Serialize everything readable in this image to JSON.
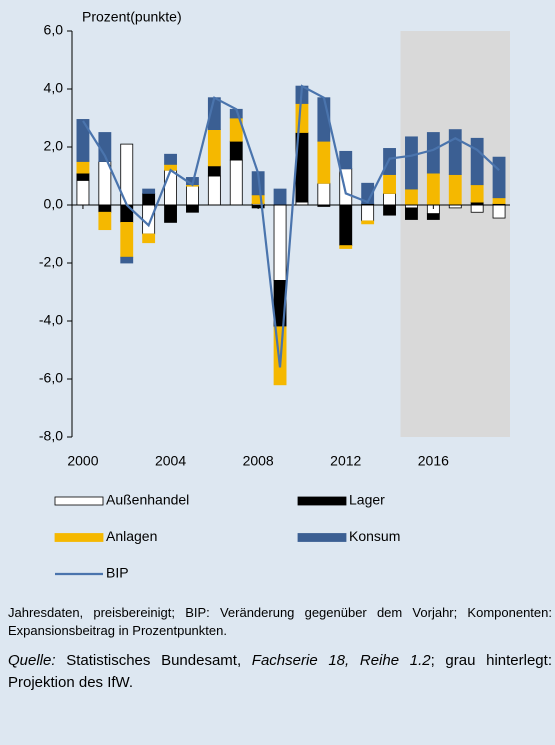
{
  "chart_data": {
    "type": "bar",
    "stacked": true,
    "y_axis_label": "Prozent(punkte)",
    "x": [
      2000,
      2001,
      2002,
      2003,
      2004,
      2005,
      2006,
      2007,
      2008,
      2009,
      2010,
      2011,
      2012,
      2013,
      2014,
      2015,
      2016,
      2017,
      2018,
      2019
    ],
    "xlim": [
      1999.5,
      2019.5
    ],
    "xticks": [
      2000,
      2004,
      2008,
      2012,
      2016
    ],
    "ylim": [
      -8,
      6
    ],
    "yticks": [
      {
        "value": -8,
        "label": "-8,0"
      },
      {
        "value": -6,
        "label": "-6,0"
      },
      {
        "value": -4,
        "label": "-4,0"
      },
      {
        "value": -2,
        "label": "-2,0"
      },
      {
        "value": 0,
        "label": "0,0"
      },
      {
        "value": 2,
        "label": "2,0"
      },
      {
        "value": 4,
        "label": "4,0"
      },
      {
        "value": 6,
        "label": "6,0"
      }
    ],
    "shaded_region": [
      2014.5,
      2019.5
    ],
    "shaded_color": "#d9d9d9",
    "series": [
      {
        "name": "Außenhandel",
        "type": "bar",
        "color": "#ffffff",
        "values": [
          0.85,
          1.5,
          2.1,
          -1.0,
          1.2,
          0.65,
          1.0,
          1.55,
          0.05,
          -2.6,
          0.1,
          0.75,
          1.25,
          -0.55,
          0.4,
          -0.1,
          -0.3,
          -0.1,
          -0.25,
          -0.45
        ]
      },
      {
        "name": "Lager",
        "type": "bar",
        "color": "#000000",
        "values": [
          0.25,
          -0.25,
          -0.6,
          0.4,
          -0.6,
          -0.25,
          0.35,
          0.65,
          -0.1,
          -1.6,
          2.4,
          -0.05,
          -1.4,
          0.05,
          -0.35,
          -0.4,
          -0.2,
          0.0,
          0.1,
          0.05
        ]
      },
      {
        "name": "Anlagen",
        "type": "bar",
        "color": "#f5b800",
        "values": [
          0.4,
          -0.6,
          -1.2,
          -0.3,
          0.2,
          0.05,
          1.25,
          0.8,
          0.3,
          -2.0,
          1.0,
          1.45,
          -0.1,
          -0.1,
          0.65,
          0.55,
          1.1,
          1.05,
          0.6,
          0.2
        ]
      },
      {
        "name": "Konsum",
        "type": "bar",
        "color": "#3b5f93",
        "values": [
          1.45,
          1.0,
          -0.2,
          0.15,
          0.35,
          0.25,
          1.1,
          0.3,
          0.8,
          0.55,
          0.6,
          1.5,
          0.6,
          0.7,
          0.9,
          1.8,
          1.4,
          1.55,
          1.6,
          1.4
        ]
      },
      {
        "name": "BIP",
        "type": "line",
        "color": "#4a74ad",
        "values": [
          2.9,
          1.7,
          0.0,
          -0.7,
          1.2,
          0.7,
          3.7,
          3.3,
          1.1,
          -5.6,
          4.1,
          3.7,
          0.4,
          0.1,
          1.6,
          1.7,
          1.9,
          2.3,
          1.9,
          1.2
        ]
      }
    ]
  },
  "notes": {
    "description": "Jahresdaten, preisbereinigt; BIP: Veränderung gegenüber dem Vorjahr; Komponenten: Expansionsbeitrag in Prozentpunkten.",
    "source_label": "Quelle:",
    "source_text": " Statistisches Bundesamt, ",
    "source_publication": "Fachserie 18, Reihe 1.2",
    "source_rest": "; grau hinterlegt: Projektion des IfW."
  }
}
